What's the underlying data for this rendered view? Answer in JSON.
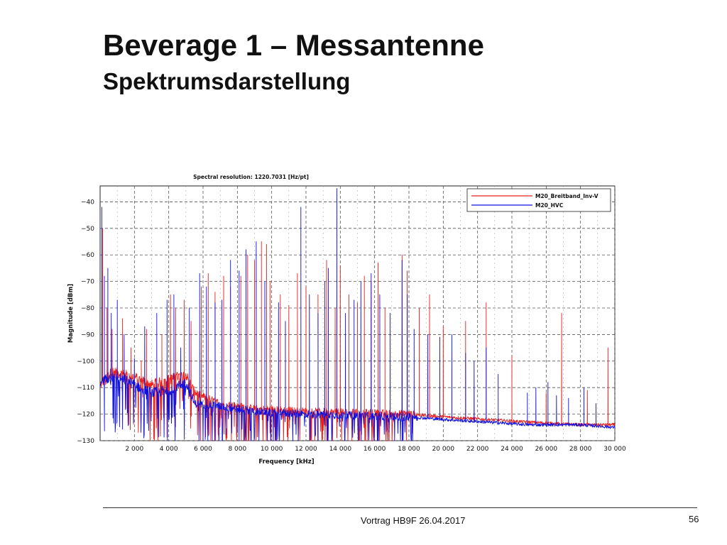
{
  "slide": {
    "title": "Beverage 1 – Messantenne",
    "subtitle": "Spektrumsdarstellung",
    "footer": "Vortrag HB9F 26.04.2017",
    "page_number": "56"
  },
  "chart_data": {
    "type": "line",
    "title": "Spectral resolution:  1220.7031  [Hz/pt]",
    "xlabel": "Frequency [kHz]",
    "ylabel": "Magnitude [dBm]",
    "xlim": [
      0,
      30000
    ],
    "ylim": [
      -130,
      -34
    ],
    "xticks": [
      2000,
      4000,
      6000,
      8000,
      10000,
      12000,
      14000,
      16000,
      18000,
      20000,
      22000,
      24000,
      26000,
      28000,
      30000
    ],
    "xtick_labels": [
      "2 000",
      "4 000",
      "6 000",
      "8 000",
      "10 000",
      "12 000",
      "14 000",
      "16 000",
      "18 000",
      "20 000",
      "22 000",
      "24 000",
      "26 000",
      "28 000",
      "30 000"
    ],
    "yticks": [
      -40,
      -50,
      -60,
      -70,
      -80,
      -90,
      -100,
      -110,
      -120,
      -130
    ],
    "ytick_labels": [
      "−40",
      "−50",
      "−60",
      "−70",
      "−80",
      "−90",
      "−100",
      "−110",
      "−120",
      "−130"
    ],
    "grid": true,
    "legend": "top-right",
    "series": [
      {
        "name": "M20_Breitband_Inv-V",
        "color": "#e8201c",
        "baseline": [
          [
            0,
            -109
          ],
          [
            700,
            -104
          ],
          [
            2000,
            -106
          ],
          [
            3000,
            -109
          ],
          [
            5000,
            -105
          ],
          [
            5500,
            -112
          ],
          [
            7000,
            -116
          ],
          [
            9000,
            -118
          ],
          [
            12000,
            -119
          ],
          [
            18000,
            -120
          ],
          [
            20000,
            -121
          ],
          [
            25000,
            -123
          ],
          [
            28000,
            -124
          ],
          [
            30000,
            -124
          ]
        ],
        "peaks": [
          [
            150,
            -50
          ],
          [
            400,
            -80
          ],
          [
            700,
            -88
          ],
          [
            1300,
            -84
          ],
          [
            1800,
            -95
          ],
          [
            2400,
            -100
          ],
          [
            2700,
            -88
          ],
          [
            3600,
            -90
          ],
          [
            4100,
            -75
          ],
          [
            4400,
            -80
          ],
          [
            4900,
            -77
          ],
          [
            5300,
            -85
          ],
          [
            5900,
            -72
          ],
          [
            6300,
            -67
          ],
          [
            6700,
            -74
          ],
          [
            7200,
            -68
          ],
          [
            7600,
            -72
          ],
          [
            8200,
            -68
          ],
          [
            8600,
            -60
          ],
          [
            9000,
            -62
          ],
          [
            9400,
            -55
          ],
          [
            9700,
            -56
          ],
          [
            9900,
            -70
          ],
          [
            10500,
            -75
          ],
          [
            11000,
            -79
          ],
          [
            11500,
            -67
          ],
          [
            12000,
            -72
          ],
          [
            12700,
            -75
          ],
          [
            13200,
            -62
          ],
          [
            13700,
            -80
          ],
          [
            14000,
            -64
          ],
          [
            14500,
            -75
          ],
          [
            15000,
            -78
          ],
          [
            15400,
            -68
          ],
          [
            15800,
            -70
          ],
          [
            16200,
            -63
          ],
          [
            16600,
            -80
          ],
          [
            17600,
            -60
          ],
          [
            17900,
            -66
          ],
          [
            18600,
            -80
          ],
          [
            19200,
            -75
          ],
          [
            20000,
            -87
          ],
          [
            21300,
            -85
          ],
          [
            22500,
            -78
          ],
          [
            24000,
            -98
          ],
          [
            26000,
            -112
          ],
          [
            26900,
            -82
          ],
          [
            28400,
            -111
          ],
          [
            29600,
            -95
          ]
        ]
      },
      {
        "name": "M20_HVC",
        "color": "#1010e0",
        "baseline": [
          [
            0,
            -108
          ],
          [
            700,
            -106
          ],
          [
            1500,
            -107
          ],
          [
            2000,
            -109
          ],
          [
            3000,
            -112
          ],
          [
            4000,
            -111
          ],
          [
            5000,
            -108
          ],
          [
            5500,
            -116
          ],
          [
            7000,
            -117
          ],
          [
            9000,
            -119
          ],
          [
            12000,
            -120
          ],
          [
            18000,
            -121
          ],
          [
            20000,
            -122
          ],
          [
            25000,
            -124
          ],
          [
            28000,
            -124
          ],
          [
            30000,
            -125
          ]
        ],
        "peaks": [
          [
            100,
            -42
          ],
          [
            250,
            -68
          ],
          [
            450,
            -65
          ],
          [
            650,
            -82
          ],
          [
            1000,
            -77
          ],
          [
            1400,
            -90
          ],
          [
            2000,
            -99
          ],
          [
            2600,
            -87
          ],
          [
            3300,
            -82
          ],
          [
            3900,
            -77
          ],
          [
            4300,
            -75
          ],
          [
            4700,
            -95
          ],
          [
            5200,
            -80
          ],
          [
            5800,
            -67
          ],
          [
            6200,
            -72
          ],
          [
            6700,
            -78
          ],
          [
            7100,
            -77
          ],
          [
            7600,
            -62
          ],
          [
            8100,
            -66
          ],
          [
            8500,
            -58
          ],
          [
            9100,
            -55
          ],
          [
            9600,
            -70
          ],
          [
            10400,
            -78
          ],
          [
            10800,
            -85
          ],
          [
            11700,
            -42
          ],
          [
            12200,
            -75
          ],
          [
            12700,
            -82
          ],
          [
            13100,
            -70
          ],
          [
            13300,
            -65
          ],
          [
            13800,
            -35
          ],
          [
            14300,
            -82
          ],
          [
            14800,
            -77
          ],
          [
            15200,
            -70
          ],
          [
            15800,
            -67
          ],
          [
            16300,
            -75
          ],
          [
            16900,
            -82
          ],
          [
            17600,
            -62
          ],
          [
            17900,
            -75
          ],
          [
            18300,
            -88
          ],
          [
            19100,
            -90
          ],
          [
            19800,
            -91
          ],
          [
            20500,
            -90
          ],
          [
            21300,
            -97
          ],
          [
            21800,
            -100
          ],
          [
            22500,
            -95
          ],
          [
            23200,
            -105
          ],
          [
            24900,
            -112
          ],
          [
            25400,
            -110
          ],
          [
            26100,
            -108
          ],
          [
            26600,
            -113
          ],
          [
            27300,
            -114
          ],
          [
            28200,
            -110
          ],
          [
            28900,
            -116
          ]
        ]
      }
    ]
  }
}
